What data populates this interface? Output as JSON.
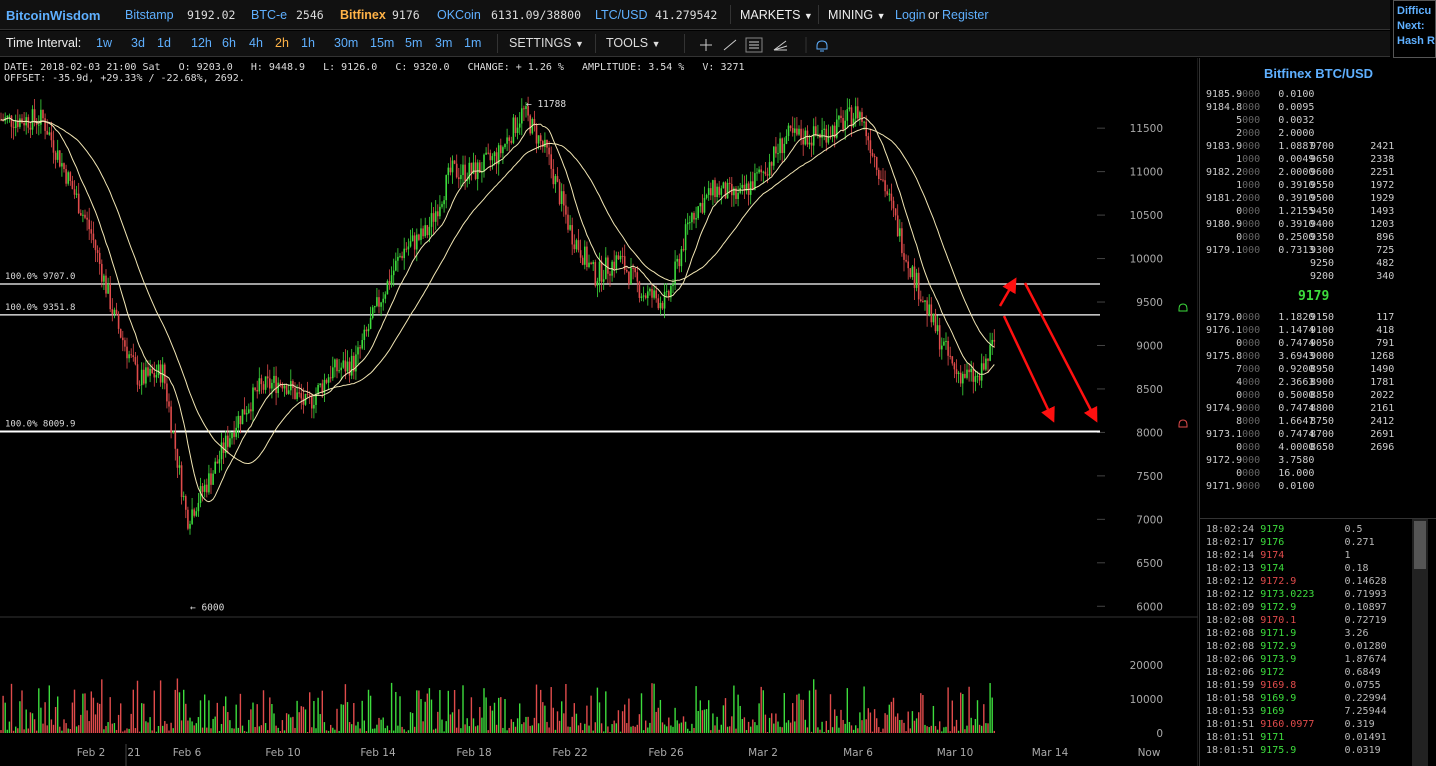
{
  "header": {
    "brand": "BitcoinWisdom",
    "exchanges": [
      {
        "name": "Bitstamp",
        "price": "9192.02",
        "active": false
      },
      {
        "name": "BTC-e",
        "price": "2546",
        "active": false
      },
      {
        "name": "Bitfinex",
        "price": "9176",
        "active": true
      },
      {
        "name": "OKCoin",
        "price": "6131.09/38800",
        "active": false
      },
      {
        "name": "LTC/USD",
        "price": "41.279542",
        "active": false
      }
    ],
    "menus": [
      "MARKETS",
      "MINING"
    ],
    "login": "Login",
    "or": "or",
    "register": "Register",
    "difficulty_lines": [
      "Difficu",
      "Next:",
      "Hash R"
    ]
  },
  "toolbar": {
    "label": "Time Interval:",
    "intervals": [
      "1w",
      "3d",
      "1d",
      "12h",
      "6h",
      "4h",
      "2h",
      "1h",
      "30m",
      "15m",
      "5m",
      "3m",
      "1m"
    ],
    "active_interval": "2h",
    "settings": "SETTINGS",
    "tools": "TOOLS"
  },
  "info": {
    "line1": "DATE: 2018-02-03 21:00 Sat   O: 9203.0   H: 9448.9   L: 9126.0   C: 9320.0   CHANGE: + 1.26 %   AMPLITUDE: 3.54 %   V: 3271",
    "line2": "OFFSET: -35.9d, +29.33% / -22.68%, 2692."
  },
  "chart_data": {
    "type": "line",
    "title": "",
    "y_ticks": [
      11500,
      11000,
      10500,
      10000,
      9500,
      9000,
      8500,
      8000,
      7500,
      7000,
      6500,
      6000
    ],
    "ylim": [
      5750,
      12100
    ],
    "vol_ticks": [
      20000,
      10000,
      0
    ],
    "x_tick_labels": [
      "Feb 2",
      "21",
      "Feb 6",
      "Feb 10",
      "Feb 14",
      "Feb 18",
      "Feb 22",
      "Feb 26",
      "Mar 2",
      "Mar 6",
      "Mar 10",
      "Mar 14",
      "Now"
    ],
    "price_path": {
      "x": [
        "Jan 31",
        "Feb 2",
        "Feb 3",
        "Feb 4",
        "Feb 5",
        "Feb 6",
        "Feb 7",
        "Feb 8",
        "Feb 9",
        "Feb 10",
        "Feb 11",
        "Feb 12",
        "Feb 13",
        "Feb 14",
        "Feb 15",
        "Feb 16",
        "Feb 17",
        "Feb 18",
        "Feb 19",
        "Feb 20",
        "Feb 21",
        "Feb 22",
        "Feb 23",
        "Feb 24",
        "Feb 25",
        "Feb 26",
        "Feb 27",
        "Feb 28",
        "Mar 1",
        "Mar 2",
        "Mar 3",
        "Mar 4",
        "Mar 5",
        "Mar 6",
        "Mar 7",
        "Mar 8",
        "Mar 9",
        "Mar 10",
        "Mar 11",
        "Mar 12"
      ],
      "close": [
        11600,
        10300,
        9300,
        8600,
        8700,
        7000,
        7500,
        8100,
        8500,
        8600,
        8300,
        8700,
        8800,
        9500,
        10100,
        10300,
        11000,
        11000,
        11200,
        11700,
        11200,
        10300,
        9800,
        10000,
        9600,
        9500,
        10500,
        10800,
        10700,
        11000,
        11400,
        11400,
        11500,
        11700,
        10900,
        10000,
        9300,
        8700,
        8600,
        9300
      ]
    },
    "annotations": [
      {
        "label": "← 11788",
        "x": "Feb 20",
        "y": 11788
      },
      {
        "label": "← 6000",
        "x": "Feb 6",
        "y": 6000
      }
    ],
    "horizontal_lines": [
      {
        "label": "100.0% 9707.0",
        "y": 9707.0
      },
      {
        "label": "100.0% 9351.8",
        "y": 9351.8
      },
      {
        "label": "100.0% 8009.9",
        "y": 8009.9
      }
    ],
    "arrows": [
      {
        "from": {
          "x": "Mar 12",
          "y": 9450
        },
        "to": {
          "x": "Mar 12",
          "y": 9710
        }
      },
      {
        "from": {
          "x": "Mar 12",
          "y": 9300
        },
        "to": {
          "x": "Mar 14",
          "y": 8020
        }
      },
      {
        "from": {
          "x": "Mar 13",
          "y": 9720
        },
        "to": {
          "x": "Mar 15",
          "y": 8020
        }
      }
    ],
    "colors": {
      "up": "#3ddc3d",
      "down": "#e04b4b",
      "ma": "#f2e6b4",
      "arrow": "#ff1010"
    }
  },
  "orderbook": {
    "title": "Bitfinex BTC/USD",
    "asks": [
      {
        "p": "9185.9",
        "pd": "000",
        "a": "0.0100"
      },
      {
        "p": "9184.8",
        "pd": "000",
        "a": "0.0095"
      },
      {
        "p": "5",
        "pd": "000",
        "a": "0.0032"
      },
      {
        "p": "2",
        "pd": "000",
        "a": "2.0000"
      },
      {
        "p": "9183.9",
        "pd": "000",
        "a": "1.0887"
      },
      {
        "p": "1",
        "pd": "000",
        "a": "0.0049"
      },
      {
        "p": "9182.2",
        "pd": "000",
        "a": "2.0000"
      },
      {
        "p": "1",
        "pd": "000",
        "a": "0.3910"
      },
      {
        "p": "9181.2",
        "pd": "000",
        "a": "0.3910"
      },
      {
        "p": "0",
        "pd": "000",
        "a": "1.2155"
      },
      {
        "p": "9180.9",
        "pd": "000",
        "a": "0.3910"
      },
      {
        "p": "0",
        "pd": "000",
        "a": "0.2500"
      },
      {
        "p": "9179.1",
        "pd": "000",
        "a": "0.7313"
      }
    ],
    "ask_depth": [
      [
        "9700",
        "2421"
      ],
      [
        "9650",
        "2338"
      ],
      [
        "9600",
        "2251"
      ],
      [
        "9550",
        "1972"
      ],
      [
        "9500",
        "1929"
      ],
      [
        "9450",
        "1493"
      ],
      [
        "9400",
        "1203"
      ],
      [
        "9350",
        "896"
      ],
      [
        "9300",
        "725"
      ],
      [
        "9250",
        "482"
      ],
      [
        "9200",
        "340"
      ]
    ],
    "last_price": "9179",
    "bids": [
      {
        "p": "9179.0",
        "pd": "000",
        "a": "1.1820"
      },
      {
        "p": "9176.1",
        "pd": "000",
        "a": "1.1474"
      },
      {
        "p": "0",
        "pd": "000",
        "a": "0.7474"
      },
      {
        "p": "9175.8",
        "pd": "000",
        "a": "3.6943"
      },
      {
        "p": "7",
        "pd": "000",
        "a": "0.9200"
      },
      {
        "p": "4",
        "pd": "000",
        "a": "2.3663"
      },
      {
        "p": "0",
        "pd": "000",
        "a": "0.5000"
      },
      {
        "p": "9174.9",
        "pd": "000",
        "a": "0.7474"
      },
      {
        "p": "8",
        "pd": "000",
        "a": "1.6647"
      },
      {
        "p": "9173.1",
        "pd": "000",
        "a": "0.7474"
      },
      {
        "p": "0",
        "pd": "000",
        "a": "4.0000"
      },
      {
        "p": "9172.9",
        "pd": "000",
        "a": "3.7580"
      },
      {
        "p": "0",
        "pd": "000",
        "a": "16.000"
      },
      {
        "p": "9171.9",
        "pd": "000",
        "a": "0.0100"
      }
    ],
    "bid_depth": [
      [
        "9150",
        "117"
      ],
      [
        "9100",
        "418"
      ],
      [
        "9050",
        "791"
      ],
      [
        "9000",
        "1268"
      ],
      [
        "8950",
        "1490"
      ],
      [
        "8900",
        "1781"
      ],
      [
        "8850",
        "2022"
      ],
      [
        "8800",
        "2161"
      ],
      [
        "8750",
        "2412"
      ],
      [
        "8700",
        "2691"
      ],
      [
        "8650",
        "2696"
      ]
    ]
  },
  "trades": [
    {
      "time": "18:02:24",
      "price": "9179",
      "amount": "0.5",
      "side": "up"
    },
    {
      "time": "18:02:17",
      "price": "9176",
      "amount": "0.271",
      "side": "up"
    },
    {
      "time": "18:02:14",
      "price": "9174",
      "amount": "1",
      "side": "down"
    },
    {
      "time": "18:02:13",
      "price": "9174",
      "amount": "0.18",
      "side": "up"
    },
    {
      "time": "18:02:12",
      "price": "9172.9",
      "amount": "0.14628",
      "side": "down"
    },
    {
      "time": "18:02:12",
      "price": "9173.0223",
      "amount": "0.71993",
      "side": "up"
    },
    {
      "time": "18:02:09",
      "price": "9172.9",
      "amount": "0.10897",
      "side": "up"
    },
    {
      "time": "18:02:08",
      "price": "9170.1",
      "amount": "0.72719",
      "side": "down"
    },
    {
      "time": "18:02:08",
      "price": "9171.9",
      "amount": "3.26",
      "side": "up"
    },
    {
      "time": "18:02:08",
      "price": "9172.9",
      "amount": "0.01280",
      "side": "up"
    },
    {
      "time": "18:02:06",
      "price": "9173.9",
      "amount": "1.87674",
      "side": "up"
    },
    {
      "time": "18:02:06",
      "price": "9172",
      "amount": "0.6849",
      "side": "up"
    },
    {
      "time": "18:01:59",
      "price": "9169.8",
      "amount": "0.0755",
      "side": "down"
    },
    {
      "time": "18:01:58",
      "price": "9169.9",
      "amount": "0.22994",
      "side": "up"
    },
    {
      "time": "18:01:53",
      "price": "9169",
      "amount": "7.25944",
      "side": "up"
    },
    {
      "time": "18:01:51",
      "price": "9160.0977",
      "amount": "0.319",
      "side": "down"
    },
    {
      "time": "18:01:51",
      "price": "9171",
      "amount": "0.01491",
      "side": "up"
    },
    {
      "time": "18:01:51",
      "price": "9175.9",
      "amount": "0.0319",
      "side": "up"
    }
  ]
}
